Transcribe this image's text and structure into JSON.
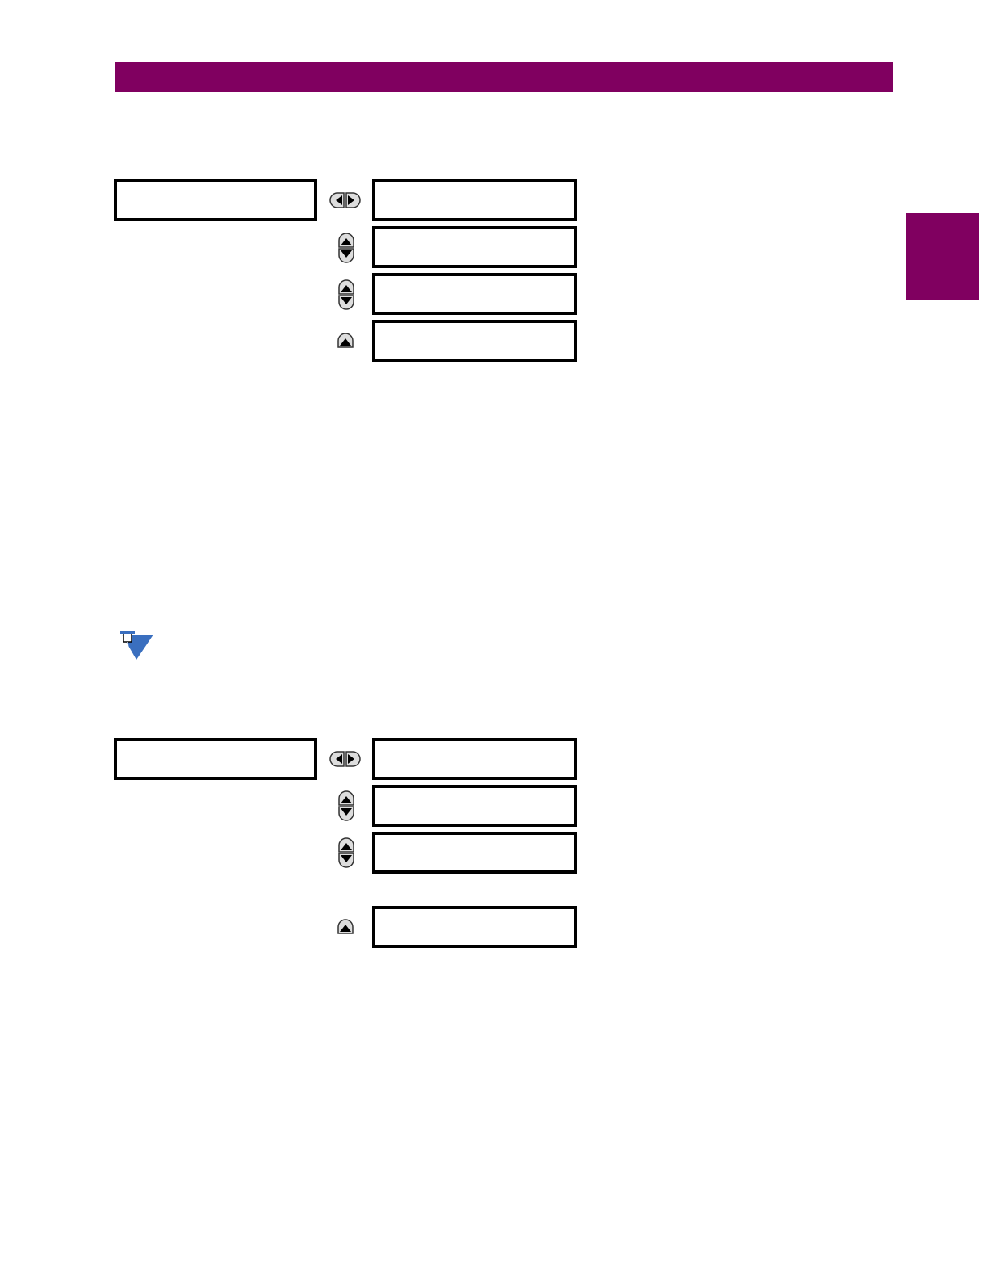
{
  "colors": {
    "accent": "#800060",
    "note_icon": "#3a6fbf"
  },
  "icons": [
    "left-right-keys-icon",
    "up-down-keys-icon",
    "up-key-icon",
    "note-pin-icon"
  ],
  "diagrams": [
    {
      "menu_box": "",
      "setting_boxes": [
        "",
        "",
        "",
        ""
      ]
    },
    {
      "menu_box": "",
      "setting_boxes": [
        "",
        "",
        "",
        ""
      ]
    }
  ]
}
